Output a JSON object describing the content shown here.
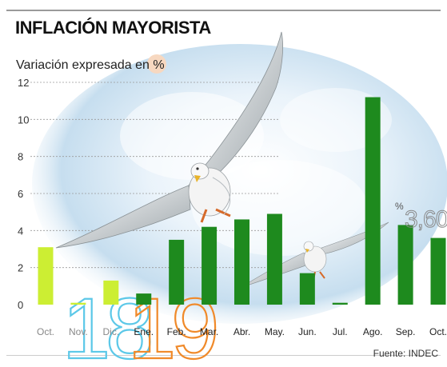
{
  "header": {
    "title": "INFLACIÓN MAYORISTA"
  },
  "source": "Fuente: INDEC",
  "callout": {
    "unit": "%",
    "value": "3,60"
  },
  "year_markers": [
    "18",
    "19"
  ],
  "colors": {
    "bar_2018": "#ccee33",
    "bar_2019": "#1e8a1e",
    "year_18": "#5cc8e8",
    "year_19": "#f08a2a",
    "sky": "#bcd8ec",
    "percent_highlight": "#f7d8c0"
  },
  "chart_data": {
    "type": "bar",
    "subtitle": "Variación expresada en %",
    "categories": [
      "Oct.",
      "Nov.",
      "Dic.",
      "Ene.",
      "Feb.",
      "Mar.",
      "Abr.",
      "May.",
      "Jun.",
      "Jul.",
      "Ago.",
      "Sep.",
      "Oct."
    ],
    "values": [
      3.1,
      0.1,
      1.3,
      0.6,
      3.5,
      4.2,
      4.6,
      4.9,
      1.7,
      0.1,
      11.2,
      4.3,
      3.6
    ],
    "year_of_bar": [
      "18",
      "18",
      "18",
      "19",
      "19",
      "19",
      "19",
      "19",
      "19",
      "19",
      "19",
      "19",
      "19"
    ],
    "yticks": [
      0,
      2,
      4,
      6,
      8,
      10,
      12
    ],
    "ylim": [
      0,
      12
    ],
    "grid": true,
    "legend": "none"
  }
}
